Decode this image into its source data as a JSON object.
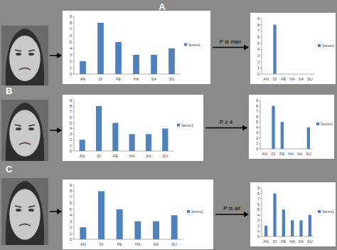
{
  "panels": [
    {
      "label": "A",
      "rule": "P is max"
    },
    {
      "label": "B",
      "rule": "P ≥ 4"
    },
    {
      "label": "C",
      "rule": "P is all"
    }
  ],
  "chart_data": [
    {
      "type": "bar",
      "categories": [
        "AN",
        "DI",
        "FE",
        "HA",
        "SA",
        "SU"
      ],
      "series": [
        {
          "name": "Series1",
          "color": "#4f81bd",
          "values": [
            2,
            8,
            5,
            3,
            3,
            4
          ]
        }
      ],
      "ylim": [
        0,
        9
      ],
      "yticks": [
        0,
        1,
        2,
        3,
        4,
        5,
        6,
        7,
        8,
        9
      ],
      "grid": false,
      "legend": "right"
    },
    {
      "type": "bar",
      "categories": [
        "AN",
        "DI",
        "FE",
        "HA",
        "SA",
        "SU"
      ],
      "series": [
        {
          "name": "Series1",
          "color": "#4f81bd",
          "values": [
            0,
            8,
            0,
            0,
            0,
            0
          ]
        }
      ],
      "ylim": [
        0,
        9
      ],
      "yticks": [
        0,
        1,
        2,
        3,
        4,
        5,
        6,
        7,
        8,
        9
      ],
      "grid": false,
      "legend": "right"
    },
    {
      "type": "bar",
      "categories": [
        "AN",
        "DI",
        "FE",
        "HA",
        "SA",
        "SU"
      ],
      "series": [
        {
          "name": "Series1",
          "color": "#4f81bd",
          "values": [
            2,
            8,
            5,
            3,
            3,
            4
          ]
        }
      ],
      "ylim": [
        0,
        9
      ],
      "yticks": [
        0,
        1,
        2,
        3,
        4,
        5,
        6,
        7,
        8,
        9
      ],
      "grid": false,
      "legend": "right"
    },
    {
      "type": "bar",
      "categories": [
        "AN",
        "DI",
        "FE",
        "HA",
        "SA",
        "SU"
      ],
      "series": [
        {
          "name": "Series1",
          "color": "#4f81bd",
          "values": [
            0,
            8,
            5,
            0,
            0,
            4
          ]
        }
      ],
      "ylim": [
        0,
        9
      ],
      "yticks": [
        0,
        1,
        2,
        3,
        4,
        5,
        6,
        7,
        8,
        9
      ],
      "grid": false,
      "legend": "right"
    },
    {
      "type": "bar",
      "categories": [
        "AN",
        "DI",
        "FE",
        "HA",
        "SA",
        "SU"
      ],
      "series": [
        {
          "name": "Series1",
          "color": "#4f81bd",
          "values": [
            2,
            8,
            5,
            3,
            3,
            4
          ]
        }
      ],
      "ylim": [
        0,
        9
      ],
      "yticks": [
        0,
        1,
        2,
        3,
        4,
        5,
        6,
        7,
        8,
        9
      ],
      "grid": false,
      "legend": "right"
    },
    {
      "type": "bar",
      "categories": [
        "AN",
        "DI",
        "FE",
        "HA",
        "SA",
        "SU"
      ],
      "series": [
        {
          "name": "Series1",
          "color": "#4f81bd",
          "values": [
            2,
            8,
            5,
            3,
            3,
            4
          ]
        }
      ],
      "ylim": [
        0,
        9
      ],
      "yticks": [
        0,
        1,
        2,
        3,
        4,
        5,
        6,
        7,
        8,
        9
      ],
      "grid": false,
      "legend": "right"
    }
  ]
}
